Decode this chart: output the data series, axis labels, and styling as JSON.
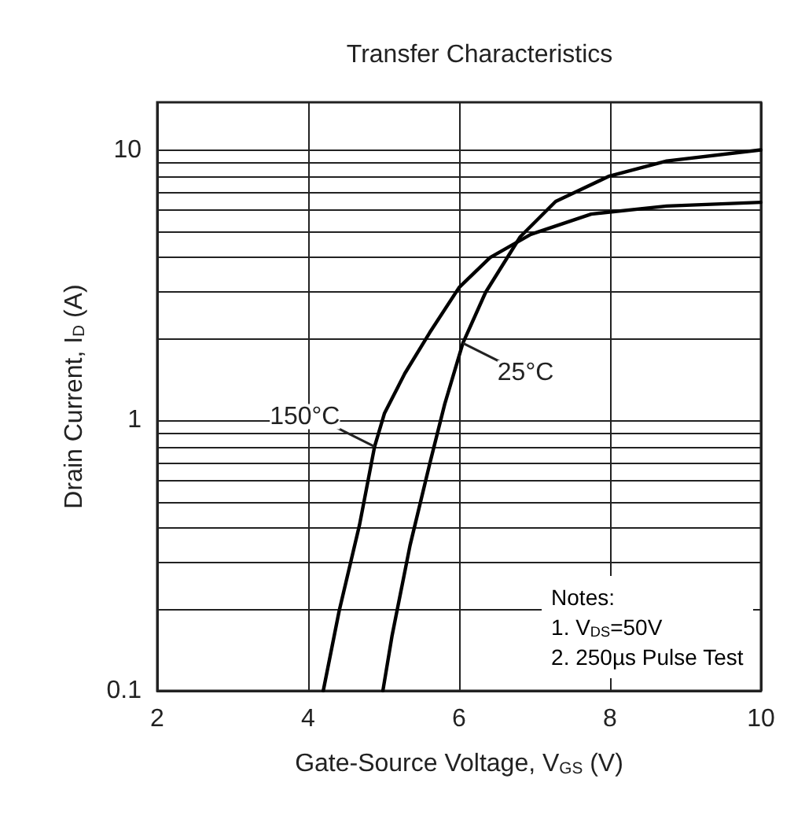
{
  "chart_data": {
    "type": "line",
    "title": "Transfer Characteristics",
    "xlabel": "Gate-Source Voltage, V$_{GS}$ (V)",
    "ylabel": "Drain Current, I$_{D}$ (A)",
    "series": [
      {
        "name": "150°C",
        "color": "#000000",
        "x": [
          4.2,
          4.41,
          4.68,
          4.88,
          5.01,
          5.28,
          5.61,
          6.0,
          6.41,
          6.95,
          7.75,
          8.75,
          10
        ],
        "values": [
          0.1,
          0.197,
          0.41,
          0.8,
          1.06,
          1.49,
          2.11,
          3.1,
          4.0,
          4.87,
          5.79,
          6.2,
          6.4
        ]
      },
      {
        "name": "25°C",
        "color": "#000000",
        "x": [
          4.99,
          5.11,
          5.35,
          5.61,
          5.81,
          6.05,
          6.35,
          6.81,
          7.28,
          7.99,
          8.75,
          10
        ],
        "values": [
          0.1,
          0.159,
          0.345,
          0.69,
          1.15,
          1.93,
          2.97,
          4.77,
          6.45,
          8.0,
          9.1,
          10
        ]
      }
    ],
    "xlim": [
      2,
      10
    ],
    "xticks": [
      2,
      4,
      6,
      8,
      10
    ],
    "ylim": [
      0.1,
      15
    ],
    "yticks": [
      0.1,
      {
        "value": 0.2,
        "label": null
      },
      {
        "value": 0.3,
        "label": null
      },
      {
        "value": 0.4,
        "label": null
      },
      {
        "value": 0.5,
        "label": null
      },
      {
        "value": 0.6,
        "label": null
      },
      {
        "value": 0.7,
        "label": null
      },
      {
        "value": 0.8,
        "label": null
      },
      {
        "value": 0.9,
        "label": null
      },
      1,
      {
        "value": 2,
        "label": null
      },
      {
        "value": 3,
        "label": null
      },
      {
        "value": 4,
        "label": null
      },
      {
        "value": 5,
        "label": null
      },
      {
        "value": 6,
        "label": null
      },
      {
        "value": 7,
        "label": null
      },
      {
        "value": 8,
        "label": null
      },
      {
        "value": 9,
        "label": null
      },
      10
    ],
    "log": "y",
    "grid": true,
    "legend": false,
    "marker": "none",
    "line_style": "solid",
    "annotations": [
      "Notes:\n1. V$_{DS}$=50V\n2. 250µs Pulse Test"
    ]
  }
}
